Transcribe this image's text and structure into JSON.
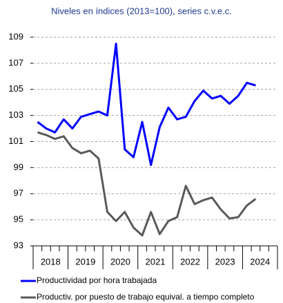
{
  "chart_data": {
    "type": "line",
    "title": "Niveles en índices (2013=100), series c.v.e.c.",
    "categories": [
      null,
      null,
      null,
      null,
      null,
      null,
      null,
      null,
      null,
      null,
      null,
      null,
      null,
      null,
      null,
      null,
      null,
      null,
      null,
      null,
      null,
      null,
      null,
      null,
      null,
      null
    ],
    "x_group_labels": [
      "2018",
      "2019",
      "2020",
      "2021",
      "2022",
      "2023",
      "2024"
    ],
    "series": [
      {
        "name": "Productividad por hora trabajada",
        "color": "#0000ff",
        "values": [
          102.5,
          102.0,
          101.7,
          102.7,
          102.0,
          102.9,
          103.1,
          103.3,
          103.0,
          108.5,
          100.4,
          99.8,
          102.5,
          99.2,
          102.1,
          103.6,
          102.7,
          102.9,
          104.1,
          104.9,
          104.3,
          104.5,
          103.9,
          104.5,
          105.5,
          105.3
        ]
      },
      {
        "name": "Productiv. por puesto de trabajo equival. a tiempo completo",
        "color": "#595959",
        "values": [
          101.7,
          101.5,
          101.2,
          101.4,
          100.5,
          100.1,
          100.3,
          99.7,
          95.6,
          94.9,
          95.6,
          94.4,
          93.8,
          95.6,
          93.9,
          94.9,
          95.2,
          97.6,
          96.2,
          96.5,
          96.7,
          95.8,
          95.1,
          95.2,
          96.1,
          96.6
        ]
      }
    ],
    "ylim": [
      93,
      109
    ],
    "yticks": [
      93,
      95,
      97,
      99,
      101,
      103,
      105,
      107,
      109
    ],
    "grid": true,
    "legend": "bottom"
  }
}
